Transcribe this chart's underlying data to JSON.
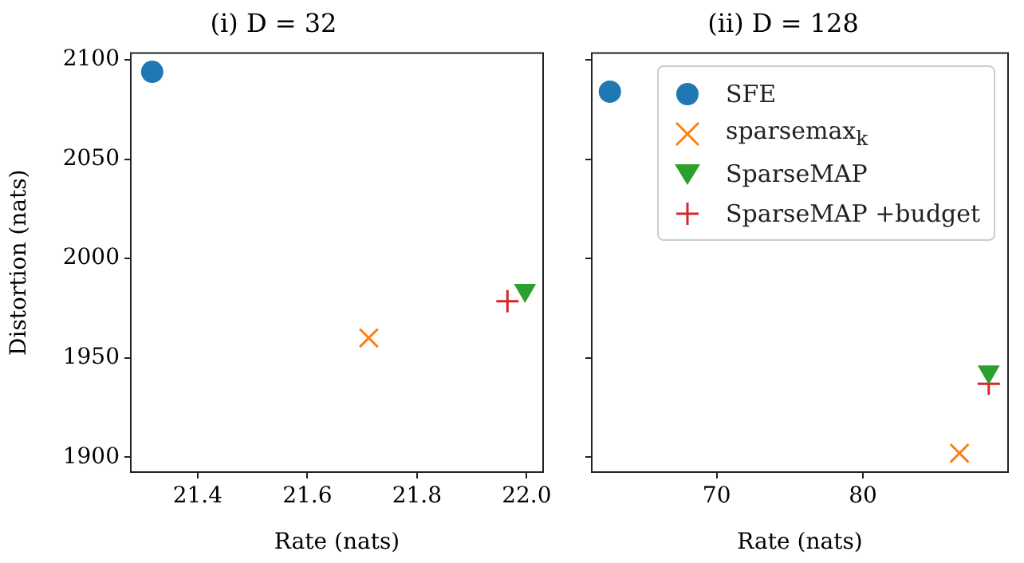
{
  "chart_data": [
    {
      "type": "scatter",
      "title": "(i) D = 32",
      "xlabel": "Rate (nats)",
      "ylabel": "Distortion (nats)",
      "xlim": [
        21.278,
        22.03
      ],
      "xticks": [
        21.4,
        21.6,
        21.8,
        {
          "value": 22.0,
          "label": "22.0"
        }
      ],
      "ylim": [
        1892.5,
        2103.5
      ],
      "yticks": [
        1900,
        1950,
        2000,
        2050,
        2100
      ],
      "grid": false,
      "legend": false,
      "series": [
        {
          "color": "#1f77b4",
          "marker": "circle",
          "x": [
            21.317
          ],
          "values": [
            2094
          ]
        },
        {
          "color": "#ff7f0e",
          "marker": "cross",
          "x": [
            21.712
          ],
          "values": [
            1960
          ]
        },
        {
          "color": "#2ca02c",
          "marker": "triangle_down",
          "x": [
            21.997
          ],
          "values": [
            1984
          ]
        },
        {
          "color": "#d62728",
          "marker": "plus",
          "x": [
            21.965
          ],
          "values": [
            1978.5
          ]
        }
      ]
    },
    {
      "type": "scatter",
      "title": "(ii) D = 128",
      "xlabel": "Rate (nats)",
      "xlim": [
        61.46,
        89.92
      ],
      "xticks": [
        70,
        80
      ],
      "ylim": [
        1892.5,
        2103.5
      ],
      "yticks": [
        1900,
        1950,
        2000,
        2050,
        2100
      ],
      "tick_labels": "x",
      "grid": false,
      "legend": "top right",
      "series": [
        {
          "name": "SFE",
          "color": "#1f77b4",
          "marker": "circle",
          "x": [
            62.7
          ],
          "values": [
            2084
          ]
        },
        {
          "name": "sparsemax$_{k}$",
          "color": "#ff7f0e",
          "marker": "cross",
          "x": [
            86.6
          ],
          "values": [
            1902
          ]
        },
        {
          "name": "SparseMAP",
          "color": "#2ca02c",
          "marker": "triangle_down",
          "x": [
            88.6
          ],
          "values": [
            1943
          ]
        },
        {
          "name": "SparseMAP +budget",
          "color": "#d62728",
          "marker": "plus",
          "x": [
            88.6
          ],
          "values": [
            1937
          ]
        }
      ]
    }
  ]
}
